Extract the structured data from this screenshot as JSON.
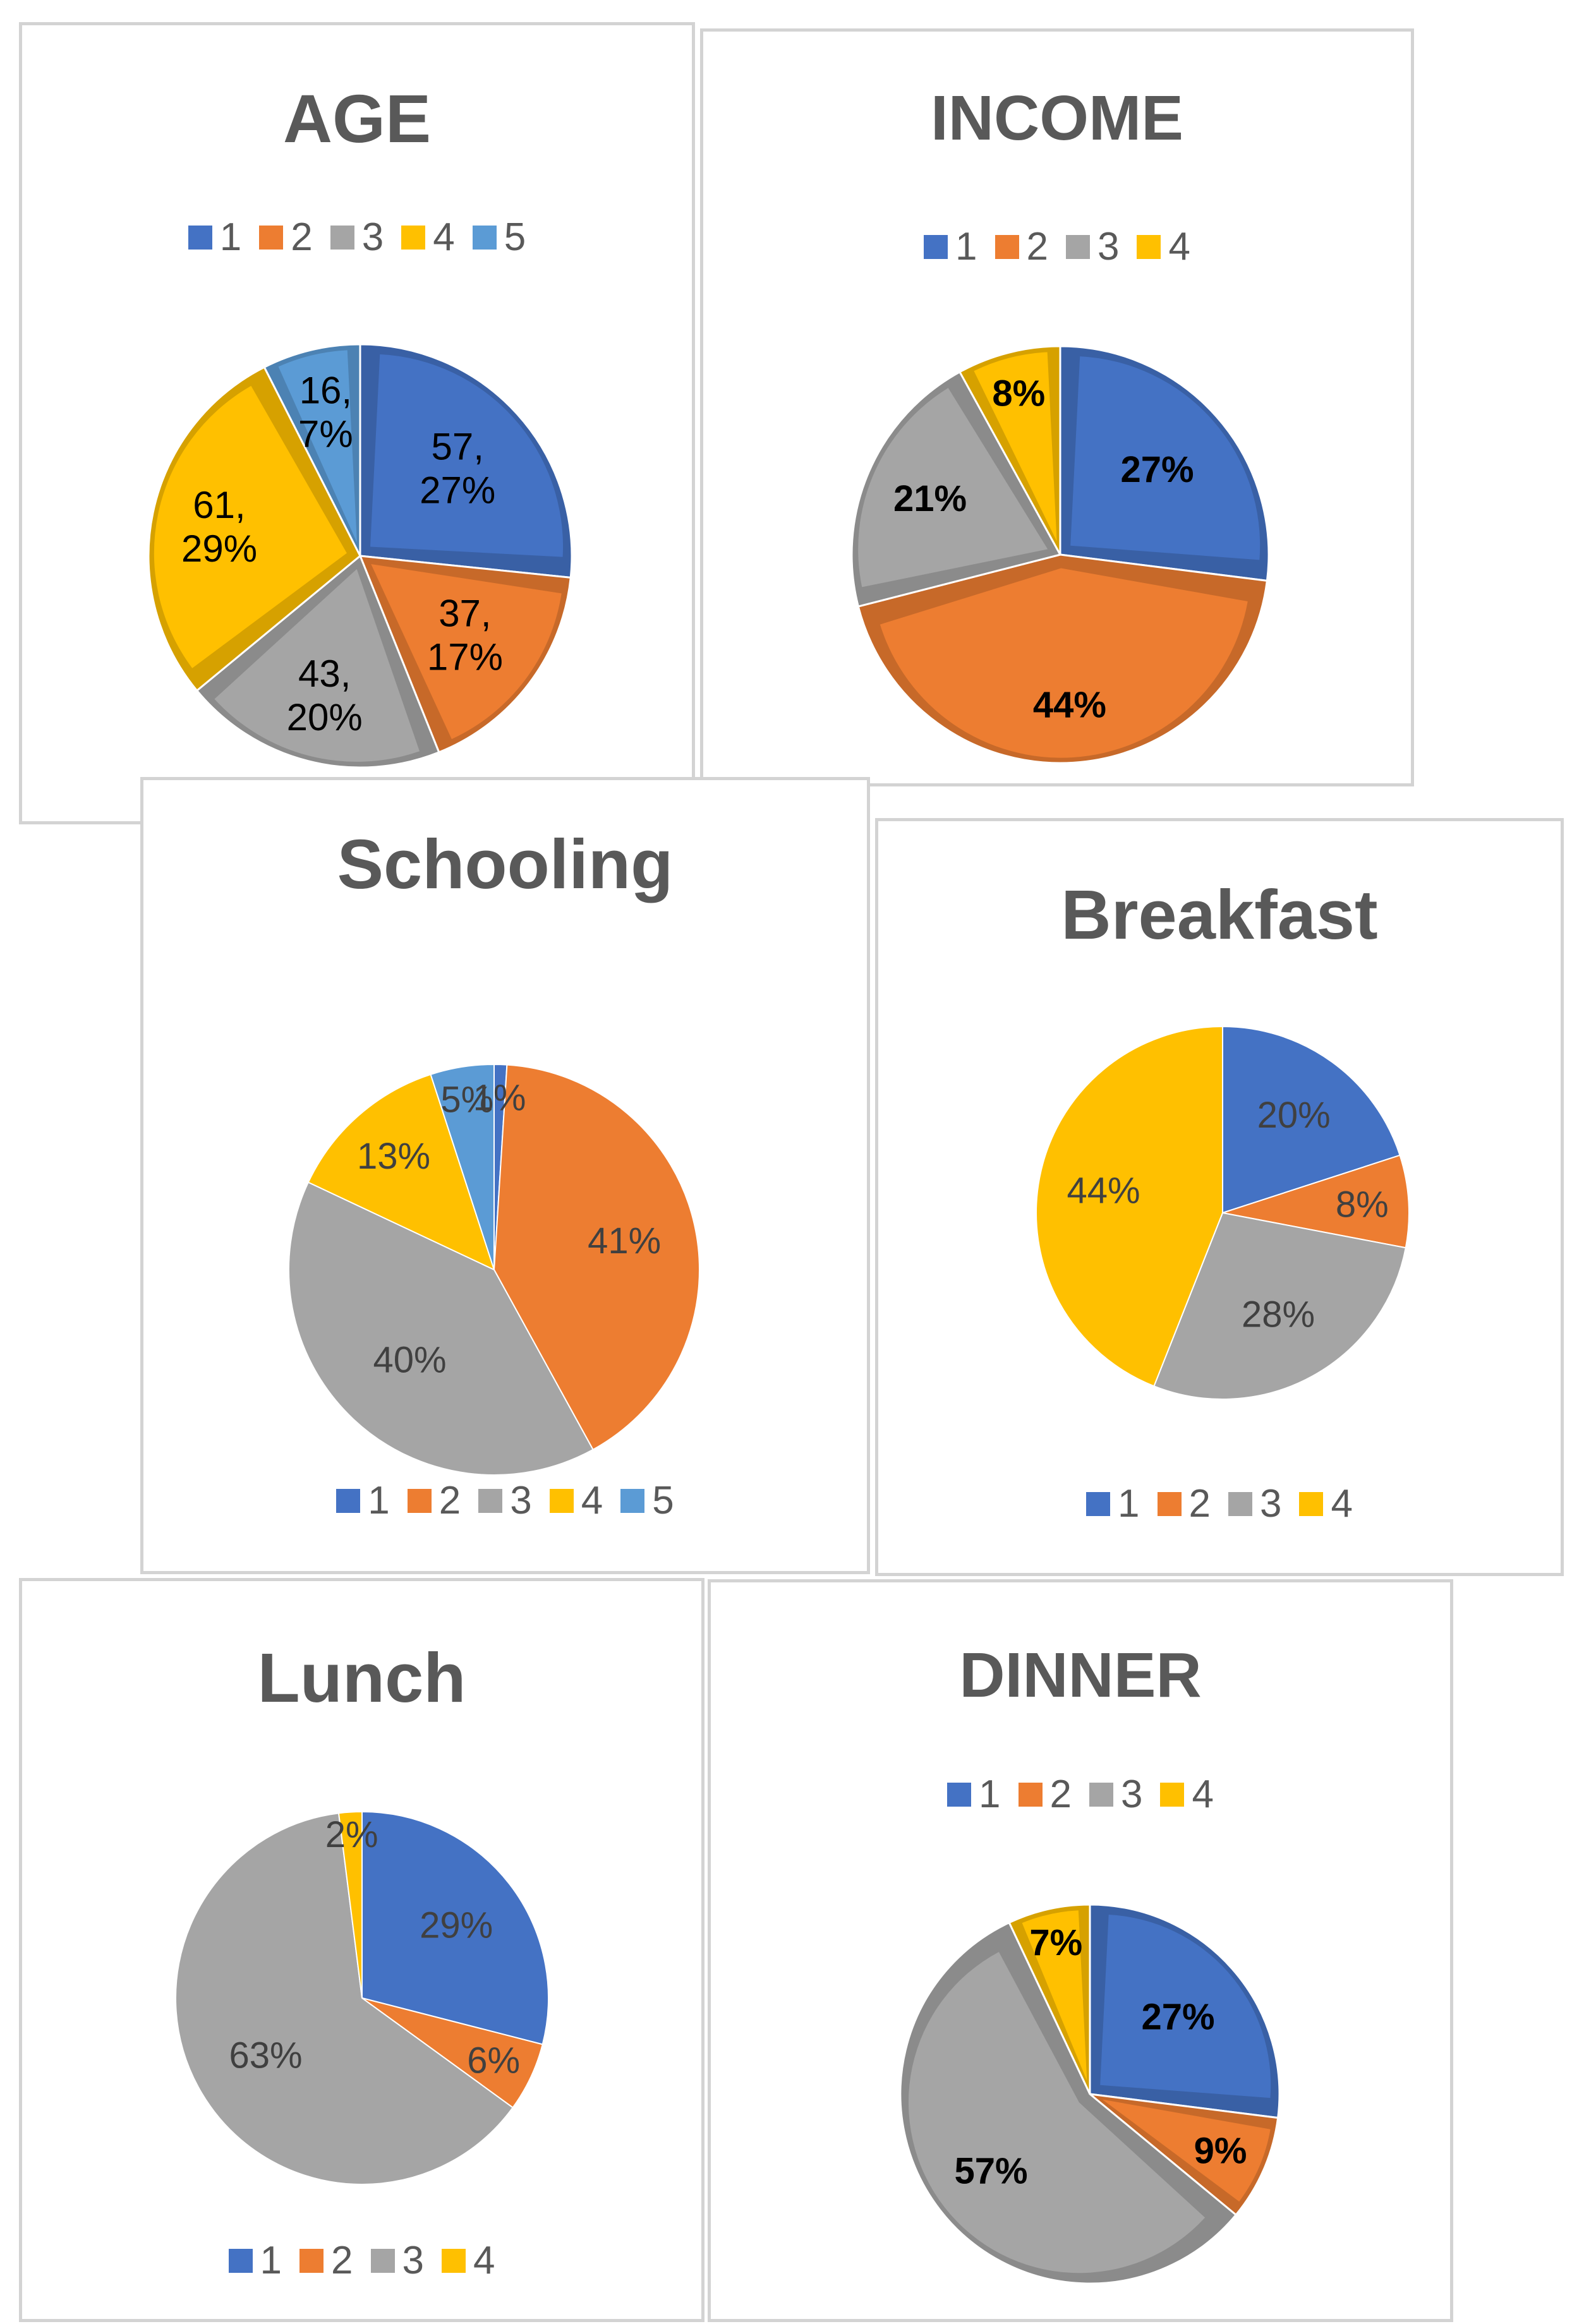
{
  "colors": {
    "series1": "#4472C4",
    "series2": "#ED7D31",
    "series3": "#A5A5A5",
    "series4": "#FFC000",
    "series5": "#5B9BD5",
    "title": "#595959",
    "label_dark": "#000000",
    "label_gray": "#404040",
    "border": "#d3d3d3"
  },
  "chart_data": [
    {
      "id": "age",
      "type": "pie",
      "title": "AGE",
      "categories": [
        "1",
        "2",
        "3",
        "4",
        "5"
      ],
      "values": [
        57,
        37,
        43,
        61,
        16
      ],
      "legend": [
        "1",
        "2",
        "3",
        "4",
        "5"
      ],
      "data_labels": [
        [
          "57,",
          "27%"
        ],
        [
          "37,",
          "17%"
        ],
        [
          "43,",
          "20%"
        ],
        [
          "61,",
          "29%"
        ],
        [
          "16,",
          "7%"
        ]
      ],
      "legend_position": "top"
    },
    {
      "id": "income",
      "type": "pie",
      "title": "INCOME",
      "categories": [
        "1",
        "2",
        "3",
        "4"
      ],
      "values": [
        27,
        44,
        21,
        8
      ],
      "legend": [
        "1",
        "2",
        "3",
        "4"
      ],
      "data_labels": [
        [
          "27%"
        ],
        [
          "44%"
        ],
        [
          "21%"
        ],
        [
          "8%"
        ]
      ],
      "legend_position": "top"
    },
    {
      "id": "schooling",
      "type": "pie",
      "title": "Schooling",
      "categories": [
        "1",
        "2",
        "3",
        "4",
        "5"
      ],
      "values": [
        1,
        41,
        40,
        13,
        5
      ],
      "legend": [
        "1",
        "2",
        "3",
        "4",
        "5"
      ],
      "data_labels": [
        [
          "1%"
        ],
        [
          "41%"
        ],
        [
          "40%"
        ],
        [
          "13%"
        ],
        [
          "5%"
        ]
      ],
      "legend_position": "bottom"
    },
    {
      "id": "breakfast",
      "type": "pie",
      "title": "Breakfast",
      "categories": [
        "1",
        "2",
        "3",
        "4"
      ],
      "values": [
        20,
        8,
        28,
        44
      ],
      "legend": [
        "1",
        "2",
        "3",
        "4"
      ],
      "data_labels": [
        [
          "20%"
        ],
        [
          "8%"
        ],
        [
          "28%"
        ],
        [
          "44%"
        ]
      ],
      "legend_position": "bottom"
    },
    {
      "id": "lunch",
      "type": "pie",
      "title": "Lunch",
      "categories": [
        "1",
        "2",
        "3",
        "4"
      ],
      "values": [
        29,
        6,
        63,
        2
      ],
      "legend": [
        "1",
        "2",
        "3",
        "4"
      ],
      "data_labels": [
        [
          "29%"
        ],
        [
          "6%"
        ],
        [
          "63%"
        ],
        [
          "2%"
        ]
      ],
      "legend_position": "bottom"
    },
    {
      "id": "dinner",
      "type": "pie",
      "title": "DINNER",
      "categories": [
        "1",
        "2",
        "3",
        "4"
      ],
      "values": [
        27,
        9,
        57,
        7
      ],
      "legend": [
        "1",
        "2",
        "3",
        "4"
      ],
      "data_labels": [
        [
          "27%"
        ],
        [
          "9%"
        ],
        [
          "57%"
        ],
        [
          "7%"
        ]
      ],
      "legend_position": "top"
    }
  ]
}
